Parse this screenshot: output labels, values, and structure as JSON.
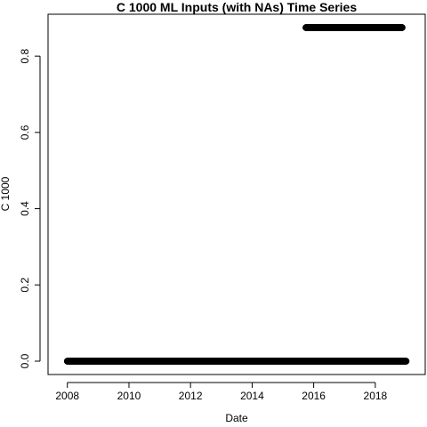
{
  "chart_data": {
    "type": "scatter",
    "title": "C 1000 ML Inputs (with NAs) Time Series",
    "xlabel": "Date",
    "ylabel": "C 1000",
    "x_ticks": [
      "2008",
      "2010",
      "2012",
      "2014",
      "2016",
      "2018"
    ],
    "y_ticks": [
      "0.0",
      "0.2",
      "0.4",
      "0.6",
      "0.8"
    ],
    "xlim": [
      "2007-05-17",
      "2019-08-16"
    ],
    "ylim": [
      -0.035,
      0.91
    ],
    "grid": false,
    "legend": "none",
    "series": [
      {
        "x_start": "2008-01-01",
        "x_end": "2019-01-01",
        "y": 0.0,
        "density": "daily"
      },
      {
        "x_start": "2015-10-01",
        "x_end": "2018-11-15",
        "y": 0.875,
        "density": "daily"
      }
    ]
  }
}
